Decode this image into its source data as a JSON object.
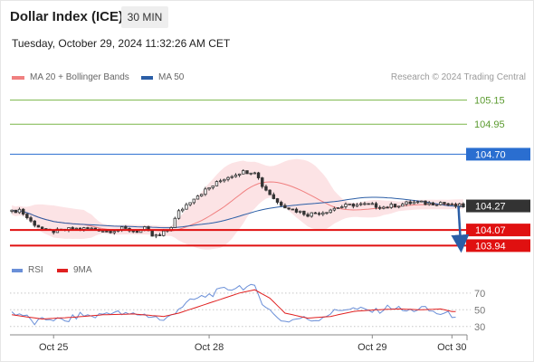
{
  "header": {
    "title": "Dollar Index (ICE)",
    "timeframe": "30 MIN",
    "timestamp": "Tuesday, October 29, 2024 11:32:26 AM CET"
  },
  "legend": {
    "ma20": {
      "label": "MA 20 + Bollinger Bands",
      "color": "#f08080"
    },
    "ma50": {
      "label": "MA 50",
      "color": "#2b5ea6"
    }
  },
  "credit": "Research © 2024 Trading Central",
  "rsi_legend": {
    "rsi": {
      "label": "RSI",
      "color": "#6a8fd8"
    },
    "ma9": {
      "label": "9MA",
      "color": "#e02020"
    }
  },
  "chart_data": [
    {
      "type": "candlestick",
      "title": "Dollar Index (ICE)",
      "ylim": [
        103.8,
        105.26
      ],
      "x_tick_labels": [
        "Oct 25",
        "Oct 28",
        "Oct 29",
        "Oct 30"
      ],
      "x_tick_index": [
        11,
        52,
        95,
        116
      ],
      "n_bars": 120,
      "current_price": "104.27",
      "levels": [
        {
          "label": "105.15",
          "value": 105.15,
          "kind": "resistance",
          "color": "#7ab648"
        },
        {
          "label": "104.95",
          "value": 104.95,
          "kind": "resistance",
          "color": "#7ab648"
        },
        {
          "label": "104.70",
          "value": 104.7,
          "kind": "pivot",
          "color": "#2a6ed0"
        },
        {
          "label": "104.07",
          "value": 104.07,
          "kind": "support",
          "color": "#e01010"
        },
        {
          "label": "103.94",
          "value": 103.94,
          "kind": "support",
          "color": "#e01010"
        }
      ],
      "price_path": [
        [
          0,
          104.22
        ],
        [
          2,
          104.24
        ],
        [
          5,
          104.14
        ],
        [
          9,
          104.06
        ],
        [
          12,
          104.06
        ],
        [
          16,
          104.08
        ],
        [
          19,
          104.08
        ],
        [
          22,
          104.08
        ],
        [
          25,
          104.06
        ],
        [
          29,
          104.08
        ],
        [
          33,
          104.06
        ],
        [
          35,
          104.08
        ],
        [
          37,
          104.02
        ],
        [
          39,
          104.02
        ],
        [
          42,
          104.1
        ],
        [
          44,
          104.22
        ],
        [
          48,
          104.34
        ],
        [
          52,
          104.42
        ],
        [
          56,
          104.5
        ],
        [
          60,
          104.55
        ],
        [
          64,
          104.56
        ],
        [
          66,
          104.44
        ],
        [
          70,
          104.3
        ],
        [
          74,
          104.24
        ],
        [
          78,
          104.2
        ],
        [
          82,
          104.22
        ],
        [
          86,
          104.26
        ],
        [
          90,
          104.28
        ],
        [
          94,
          104.28
        ],
        [
          98,
          104.26
        ],
        [
          102,
          104.28
        ],
        [
          106,
          104.3
        ],
        [
          110,
          104.29
        ],
        [
          113,
          104.3
        ],
        [
          116,
          104.27
        ]
      ],
      "projection": {
        "from": 104.27,
        "to": 103.94
      }
    },
    {
      "type": "line",
      "title": "RSI",
      "ylim": [
        20,
        85
      ],
      "y_ticks": [
        30,
        50,
        70
      ],
      "series": [
        {
          "name": "RSI",
          "points": [
            [
              0,
              47
            ],
            [
              3,
              44
            ],
            [
              6,
              34
            ],
            [
              10,
              40
            ],
            [
              14,
              36
            ],
            [
              18,
              44
            ],
            [
              22,
              42
            ],
            [
              26,
              48
            ],
            [
              30,
              44
            ],
            [
              34,
              45
            ],
            [
              38,
              41
            ],
            [
              40,
              36
            ],
            [
              44,
              52
            ],
            [
              48,
              62
            ],
            [
              52,
              68
            ],
            [
              56,
              74
            ],
            [
              60,
              78
            ],
            [
              64,
              76
            ],
            [
              66,
              60
            ],
            [
              69,
              44
            ],
            [
              72,
              36
            ],
            [
              76,
              40
            ],
            [
              80,
              38
            ],
            [
              84,
              46
            ],
            [
              88,
              52
            ],
            [
              92,
              50
            ],
            [
              96,
              48
            ],
            [
              100,
              54
            ],
            [
              104,
              48
            ],
            [
              108,
              52
            ],
            [
              112,
              46
            ],
            [
              116,
              44
            ]
          ]
        },
        {
          "name": "9MA",
          "points": [
            [
              0,
              44
            ],
            [
              8,
              39
            ],
            [
              16,
              41
            ],
            [
              24,
              44
            ],
            [
              32,
              45
            ],
            [
              40,
              42
            ],
            [
              44,
              46
            ],
            [
              52,
              58
            ],
            [
              60,
              70
            ],
            [
              64,
              74
            ],
            [
              68,
              64
            ],
            [
              72,
              46
            ],
            [
              78,
              40
            ],
            [
              84,
              42
            ],
            [
              90,
              48
            ],
            [
              96,
              50
            ],
            [
              102,
              51
            ],
            [
              108,
              50
            ],
            [
              113,
              51
            ],
            [
              116,
              48
            ]
          ]
        }
      ]
    }
  ]
}
